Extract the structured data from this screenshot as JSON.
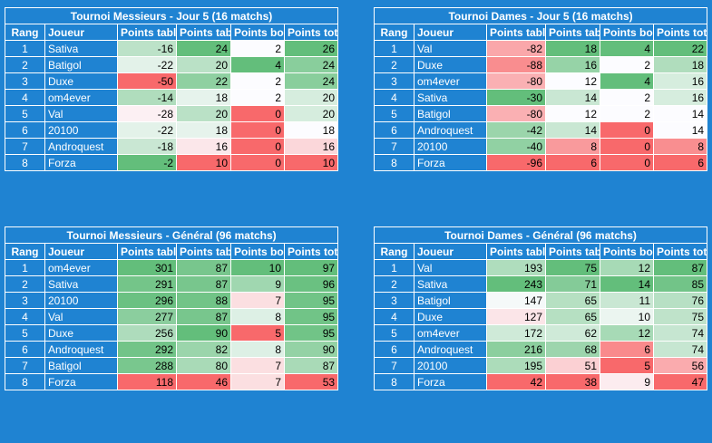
{
  "colors": {
    "background": "#1f83d2",
    "low": "#f8696b",
    "mid": "#fcfcff",
    "high": "#63be7b"
  },
  "headers": {
    "rang": "Rang",
    "joueur": "Joueur",
    "points_tableau_perdus": "Points tableau perdus",
    "points_tableau_max": "Points tableau max",
    "points_tableau": "Points tableau",
    "points_bonus": "Points bonus",
    "points_totaux": "Points totaux"
  },
  "tables": [
    {
      "id": "men-day5",
      "title": "Tournoi Messieurs - Jour 5 (16 matchs)",
      "first_col": "perdus",
      "rows": [
        {
          "rank": "1",
          "player": "Sativa",
          "c1": -16,
          "c2": 24,
          "c3": 2,
          "c4": 26
        },
        {
          "rank": "2",
          "player": "Batigol",
          "c1": -22,
          "c2": 20,
          "c3": 4,
          "c4": 24
        },
        {
          "rank": "3",
          "player": "Duxe",
          "c1": -50,
          "c2": 22,
          "c3": 2,
          "c4": 24
        },
        {
          "rank": "4",
          "player": "om4ever",
          "c1": -14,
          "c2": 18,
          "c3": 2,
          "c4": 20
        },
        {
          "rank": "5",
          "player": "Val",
          "c1": -28,
          "c2": 20,
          "c3": 0,
          "c4": 20
        },
        {
          "rank": "6",
          "player": "20100",
          "c1": -22,
          "c2": 18,
          "c3": 0,
          "c4": 18
        },
        {
          "rank": "7",
          "player": "Androquest",
          "c1": -18,
          "c2": 16,
          "c3": 0,
          "c4": 16
        },
        {
          "rank": "8",
          "player": "Forza",
          "c1": -2,
          "c2": 10,
          "c3": 0,
          "c4": 10
        }
      ]
    },
    {
      "id": "women-day5",
      "title": "Tournoi Dames - Jour 5 (16 matchs)",
      "first_col": "perdus",
      "rows": [
        {
          "rank": "1",
          "player": "Val",
          "c1": -82,
          "c2": 18,
          "c3": 4,
          "c4": 22
        },
        {
          "rank": "2",
          "player": "Duxe",
          "c1": -88,
          "c2": 16,
          "c3": 2,
          "c4": 18
        },
        {
          "rank": "3",
          "player": "om4ever",
          "c1": -80,
          "c2": 12,
          "c3": 4,
          "c4": 16
        },
        {
          "rank": "4",
          "player": "Sativa",
          "c1": -30,
          "c2": 14,
          "c3": 2,
          "c4": 16
        },
        {
          "rank": "5",
          "player": "Batigol",
          "c1": -80,
          "c2": 12,
          "c3": 2,
          "c4": 14
        },
        {
          "rank": "6",
          "player": "Androquest",
          "c1": -42,
          "c2": 14,
          "c3": 0,
          "c4": 14
        },
        {
          "rank": "7",
          "player": "20100",
          "c1": -40,
          "c2": 8,
          "c3": 0,
          "c4": 8
        },
        {
          "rank": "8",
          "player": "Forza",
          "c1": -96,
          "c2": 6,
          "c3": 0,
          "c4": 6
        }
      ]
    },
    {
      "id": "men-general",
      "title": "Tournoi Messieurs - Général (96 matchs)",
      "first_col": "max",
      "rows": [
        {
          "rank": "1",
          "player": "om4ever",
          "c1": 301,
          "c2": 87,
          "c3": 10,
          "c4": 97
        },
        {
          "rank": "2",
          "player": "Sativa",
          "c1": 291,
          "c2": 87,
          "c3": 9,
          "c4": 96
        },
        {
          "rank": "3",
          "player": "20100",
          "c1": 296,
          "c2": 88,
          "c3": 7,
          "c4": 95
        },
        {
          "rank": "4",
          "player": "Val",
          "c1": 277,
          "c2": 87,
          "c3": 8,
          "c4": 95
        },
        {
          "rank": "5",
          "player": "Duxe",
          "c1": 256,
          "c2": 90,
          "c3": 5,
          "c4": 95
        },
        {
          "rank": "6",
          "player": "Androquest",
          "c1": 292,
          "c2": 82,
          "c3": 8,
          "c4": 90
        },
        {
          "rank": "7",
          "player": "Batigol",
          "c1": 288,
          "c2": 80,
          "c3": 7,
          "c4": 87
        },
        {
          "rank": "8",
          "player": "Forza",
          "c1": 118,
          "c2": 46,
          "c3": 7,
          "c4": 53
        }
      ]
    },
    {
      "id": "women-general",
      "title": "Tournoi Dames - Général (96 matchs)",
      "first_col": "max",
      "rows": [
        {
          "rank": "1",
          "player": "Val",
          "c1": 193,
          "c2": 75,
          "c3": 12,
          "c4": 87
        },
        {
          "rank": "2",
          "player": "Sativa",
          "c1": 243,
          "c2": 71,
          "c3": 14,
          "c4": 85
        },
        {
          "rank": "3",
          "player": "Batigol",
          "c1": 147,
          "c2": 65,
          "c3": 11,
          "c4": 76
        },
        {
          "rank": "4",
          "player": "Duxe",
          "c1": 127,
          "c2": 65,
          "c3": 10,
          "c4": 75
        },
        {
          "rank": "5",
          "player": "om4ever",
          "c1": 172,
          "c2": 62,
          "c3": 12,
          "c4": 74
        },
        {
          "rank": "6",
          "player": "Androquest",
          "c1": 216,
          "c2": 68,
          "c3": 6,
          "c4": 74
        },
        {
          "rank": "7",
          "player": "20100",
          "c1": 195,
          "c2": 51,
          "c3": 5,
          "c4": 56
        },
        {
          "rank": "8",
          "player": "Forza",
          "c1": 42,
          "c2": 38,
          "c3": 9,
          "c4": 47
        }
      ]
    }
  ]
}
